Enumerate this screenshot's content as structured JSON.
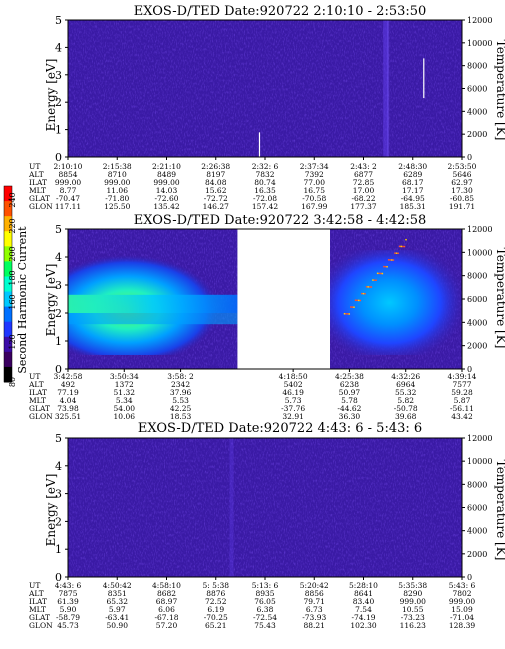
{
  "chart_data": [
    {
      "type": "heatmap",
      "title": "EXOS-D/TED   Date:920722   2:10:10 - 2:53:50",
      "ylabel": "Energy [eV]",
      "ylabel_right": "Temperature [K]",
      "ylim": [
        0,
        5
      ],
      "y_ticks": [
        "0",
        "1",
        "2",
        "3",
        "4",
        "5"
      ],
      "ylim_right": [
        0,
        12000
      ],
      "y_ticks_right": [
        "0",
        "2000",
        "4000",
        "6000",
        "8000",
        "10000",
        "12000"
      ],
      "data_gap": null,
      "orbit_rows": [
        {
          "label": "UT",
          "values": [
            "2:10:10",
            "2:15:38",
            "2:21:10",
            "2:26:38",
            "2:32: 6",
            "2:37:34",
            "2:43: 2",
            "2:48:30",
            "2:53:50"
          ]
        },
        {
          "label": "ALT",
          "values": [
            "8854",
            "8710",
            "8489",
            "8197",
            "7832",
            "7392",
            "6877",
            "6289",
            "5646"
          ]
        },
        {
          "label": "ILAT",
          "values": [
            "999.00",
            "999.00",
            "999.00",
            "84.08",
            "80.74",
            "77.00",
            "72.85",
            "68.17",
            "62.97"
          ]
        },
        {
          "label": "MLT",
          "values": [
            "8.77",
            "11.06",
            "14.03",
            "15.62",
            "16.35",
            "16.75",
            "17.00",
            "17.17",
            "17.30"
          ]
        },
        {
          "label": "GLAT",
          "values": [
            "-70.47",
            "-71.80",
            "-72.60",
            "-72.72",
            "-72.08",
            "-70.58",
            "-68.22",
            "-64.95",
            "-60.85"
          ]
        },
        {
          "label": "GLON",
          "values": [
            "117.11",
            "125.50",
            "135.42",
            "146.27",
            "157.42",
            "167.99",
            "177.37",
            "185.31",
            "191.71"
          ]
        }
      ]
    },
    {
      "type": "heatmap",
      "title": "EXOS-D/TED   Date:920722   3:42:58 - 4:42:58",
      "ylabel": "Energy [eV]",
      "ylabel_right": "Temperature [K]",
      "ylim": [
        0,
        5
      ],
      "y_ticks": [
        "0",
        "1",
        "2",
        "3",
        "4",
        "5"
      ],
      "ylim_right": [
        0,
        12000
      ],
      "y_ticks_right": [
        "0",
        "2000",
        "4000",
        "6000",
        "8000",
        "10000",
        "12000"
      ],
      "data_gap": [
        0.43,
        0.665
      ],
      "orbit_rows": [
        {
          "label": "UT",
          "values": [
            "3:42:58",
            "3:50:34",
            "3:58: 2",
            "",
            "4:18:50",
            "4:25:38",
            "4:32:26",
            "4:39:14"
          ]
        },
        {
          "label": "ALT",
          "values": [
            "492",
            "1372",
            "2342",
            "",
            "5402",
            "6238",
            "6964",
            "7577"
          ]
        },
        {
          "label": "ILAT",
          "values": [
            "77.19",
            "51.32",
            "37.96",
            "",
            "46.19",
            "50.97",
            "55.32",
            "59.28"
          ]
        },
        {
          "label": "MLT",
          "values": [
            "4.04",
            "5.34",
            "5.53",
            "",
            "5.73",
            "5.78",
            "5.82",
            "5.87"
          ]
        },
        {
          "label": "GLAT",
          "values": [
            "73.98",
            "54.00",
            "42.25",
            "",
            "-37.76",
            "-44.62",
            "-50.78",
            "-56.11"
          ]
        },
        {
          "label": "GLON",
          "values": [
            "325.51",
            "10.06",
            "18.53",
            "",
            "32.91",
            "36.30",
            "39.68",
            "43.42"
          ]
        }
      ]
    },
    {
      "type": "heatmap",
      "title": "EXOS-D/TED   Date:920722   4:43: 6 - 5:43: 6",
      "ylabel": "Energy [eV]",
      "ylabel_right": "Temperature [K]",
      "ylim": [
        0,
        5
      ],
      "y_ticks": [
        "0",
        "1",
        "2",
        "3",
        "4",
        "5"
      ],
      "ylim_right": [
        0,
        12000
      ],
      "y_ticks_right": [
        "0",
        "2000",
        "4000",
        "6000",
        "8000",
        "10000",
        "12000"
      ],
      "data_gap": null,
      "orbit_rows": [
        {
          "label": "UT",
          "values": [
            "4:43: 6",
            "4:50:42",
            "4:58:10",
            "5: 5:38",
            "5:13: 6",
            "5:20:42",
            "5:28:10",
            "5:35:38",
            "5:43: 6"
          ]
        },
        {
          "label": "ALT",
          "values": [
            "7875",
            "8351",
            "8682",
            "8876",
            "8935",
            "8856",
            "8641",
            "8290",
            "7802"
          ]
        },
        {
          "label": "ILAT",
          "values": [
            "61.39",
            "65.32",
            "68.97",
            "72.52",
            "76.05",
            "79.71",
            "83.40",
            "999.00",
            "999.00"
          ]
        },
        {
          "label": "MLT",
          "values": [
            "5.90",
            "5.97",
            "6.06",
            "6.19",
            "6.38",
            "6.73",
            "7.54",
            "10.55",
            "15.09"
          ]
        },
        {
          "label": "GLAT",
          "values": [
            "-58.79",
            "-63.41",
            "-67.18",
            "-70.25",
            "-72.54",
            "-73.93",
            "-74.19",
            "-73.23",
            "-71.04"
          ]
        },
        {
          "label": "GLON",
          "values": [
            "45.73",
            "50.90",
            "57.20",
            "65.21",
            "75.43",
            "88.21",
            "102.30",
            "116.23",
            "128.39"
          ]
        }
      ]
    }
  ],
  "colorbar": {
    "label": "Second Harmonic Current",
    "ticks": [
      "80",
      "120",
      "160",
      "180",
      "200",
      "220",
      "240"
    ],
    "colors": [
      "#000000",
      "#3a0060",
      "#3b0ba8",
      "#1f36ff",
      "#0070ff",
      "#00c8ff",
      "#00ffd0",
      "#00ff60",
      "#90ff00",
      "#ffff00",
      "#ffb000",
      "#ff5000",
      "#ff0000"
    ]
  },
  "colors": {
    "background_field": "#3a1aa5",
    "noise": "#2a10c6",
    "streak": "#5e3de8"
  }
}
